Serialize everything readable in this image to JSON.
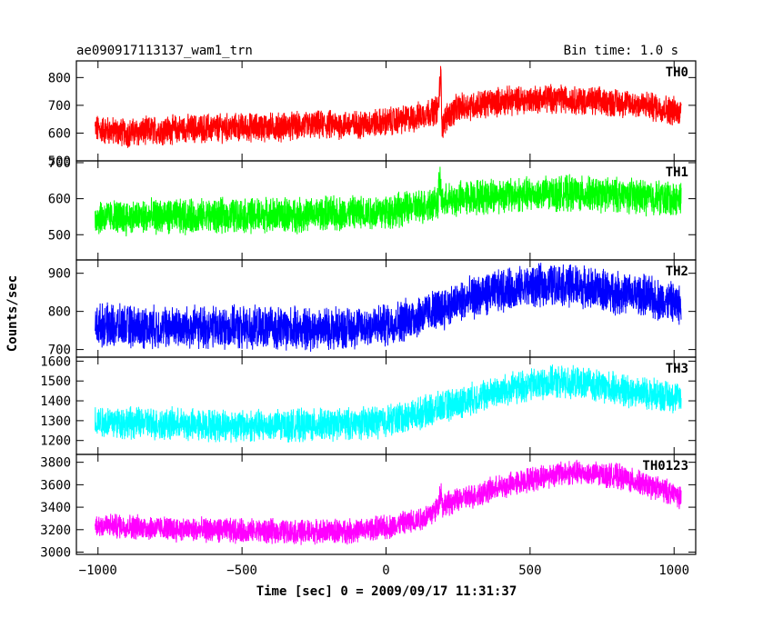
{
  "chart_data": {
    "type": "line",
    "title": "ae090917113137_wam1_trn",
    "bin_time_label": "Bin time: 1.0 s",
    "xlabel": "Time [sec] 0 = 2009/09/17 11:31:37",
    "ylabel": "Counts/sec",
    "xlim": [
      -1075,
      1075
    ],
    "x_ticks": [
      -1000,
      -500,
      0,
      500,
      1000
    ],
    "x_tick_labels": [
      "−1000",
      "−500",
      "0",
      "500",
      "1000"
    ],
    "panels": [
      {
        "name": "TH0",
        "color": "#ff0000",
        "ylim": [
          500,
          860
        ],
        "y_ticks": [
          500,
          600,
          700,
          800
        ],
        "series": {
          "x": [
            -1010,
            -900,
            -800,
            -700,
            -600,
            -500,
            -400,
            -300,
            -200,
            -100,
            0,
            100,
            150,
            180,
            190,
            195,
            210,
            250,
            300,
            400,
            500,
            550,
            600,
            650,
            700,
            800,
            900,
            1000,
            1025
          ],
          "values": [
            615,
            600,
            610,
            615,
            618,
            620,
            622,
            625,
            630,
            630,
            640,
            655,
            675,
            685,
            810,
            620,
            660,
            690,
            700,
            715,
            720,
            725,
            725,
            720,
            715,
            710,
            700,
            680,
            675
          ],
          "noise": 45
        }
      },
      {
        "name": "TH1",
        "color": "#00ff00",
        "ylim": [
          430,
          705
        ],
        "y_ticks": [
          500,
          600,
          700
        ],
        "series": {
          "x": [
            -1010,
            -900,
            -800,
            -700,
            -600,
            -500,
            -400,
            -300,
            -200,
            -100,
            0,
            100,
            150,
            180,
            185,
            195,
            250,
            300,
            400,
            500,
            600,
            650,
            700,
            800,
            900,
            1000,
            1025
          ],
          "values": [
            550,
            548,
            550,
            550,
            552,
            553,
            555,
            555,
            558,
            560,
            565,
            575,
            585,
            590,
            650,
            590,
            600,
            605,
            610,
            612,
            615,
            615,
            612,
            610,
            605,
            600,
            598
          ],
          "noise": 42
        }
      },
      {
        "name": "TH2",
        "color": "#0000ff",
        "ylim": [
          680,
          935
        ],
        "y_ticks": [
          700,
          800,
          900
        ],
        "series": {
          "x": [
            -1010,
            -900,
            -800,
            -700,
            -600,
            -500,
            -400,
            -300,
            -200,
            -100,
            0,
            100,
            200,
            300,
            400,
            500,
            550,
            600,
            650,
            700,
            800,
            900,
            1000,
            1025
          ],
          "values": [
            765,
            760,
            758,
            758,
            758,
            757,
            756,
            755,
            756,
            758,
            765,
            785,
            810,
            835,
            855,
            865,
            868,
            870,
            868,
            862,
            850,
            840,
            820,
            812
          ],
          "noise": 48
        }
      },
      {
        "name": "TH3",
        "color": "#00ffff",
        "ylim": [
          1130,
          1620
        ],
        "y_ticks": [
          1200,
          1300,
          1400,
          1500,
          1600
        ],
        "series": {
          "x": [
            -1010,
            -900,
            -800,
            -700,
            -600,
            -500,
            -400,
            -300,
            -200,
            -100,
            0,
            100,
            200,
            300,
            400,
            500,
            550,
            600,
            650,
            700,
            800,
            900,
            1000,
            1025
          ],
          "values": [
            1300,
            1290,
            1285,
            1280,
            1278,
            1275,
            1275,
            1277,
            1280,
            1285,
            1300,
            1330,
            1370,
            1410,
            1450,
            1480,
            1490,
            1495,
            1490,
            1485,
            1460,
            1440,
            1420,
            1410
          ],
          "noise": 70
        }
      },
      {
        "name": "TH0123",
        "color": "#ff00ff",
        "ylim": [
          2980,
          3870
        ],
        "y_ticks": [
          3000,
          3200,
          3400,
          3600,
          3800
        ],
        "series": {
          "x": [
            -1010,
            -900,
            -800,
            -700,
            -600,
            -500,
            -400,
            -300,
            -200,
            -100,
            0,
            100,
            150,
            180,
            190,
            195,
            250,
            300,
            400,
            500,
            600,
            650,
            700,
            800,
            900,
            1000,
            1025
          ],
          "values": [
            3240,
            3230,
            3215,
            3200,
            3195,
            3190,
            3185,
            3180,
            3185,
            3190,
            3220,
            3280,
            3330,
            3400,
            3560,
            3420,
            3460,
            3500,
            3580,
            3650,
            3700,
            3710,
            3700,
            3680,
            3600,
            3520,
            3490
          ],
          "noise": 95
        }
      }
    ],
    "grid": false,
    "legend": "none"
  }
}
